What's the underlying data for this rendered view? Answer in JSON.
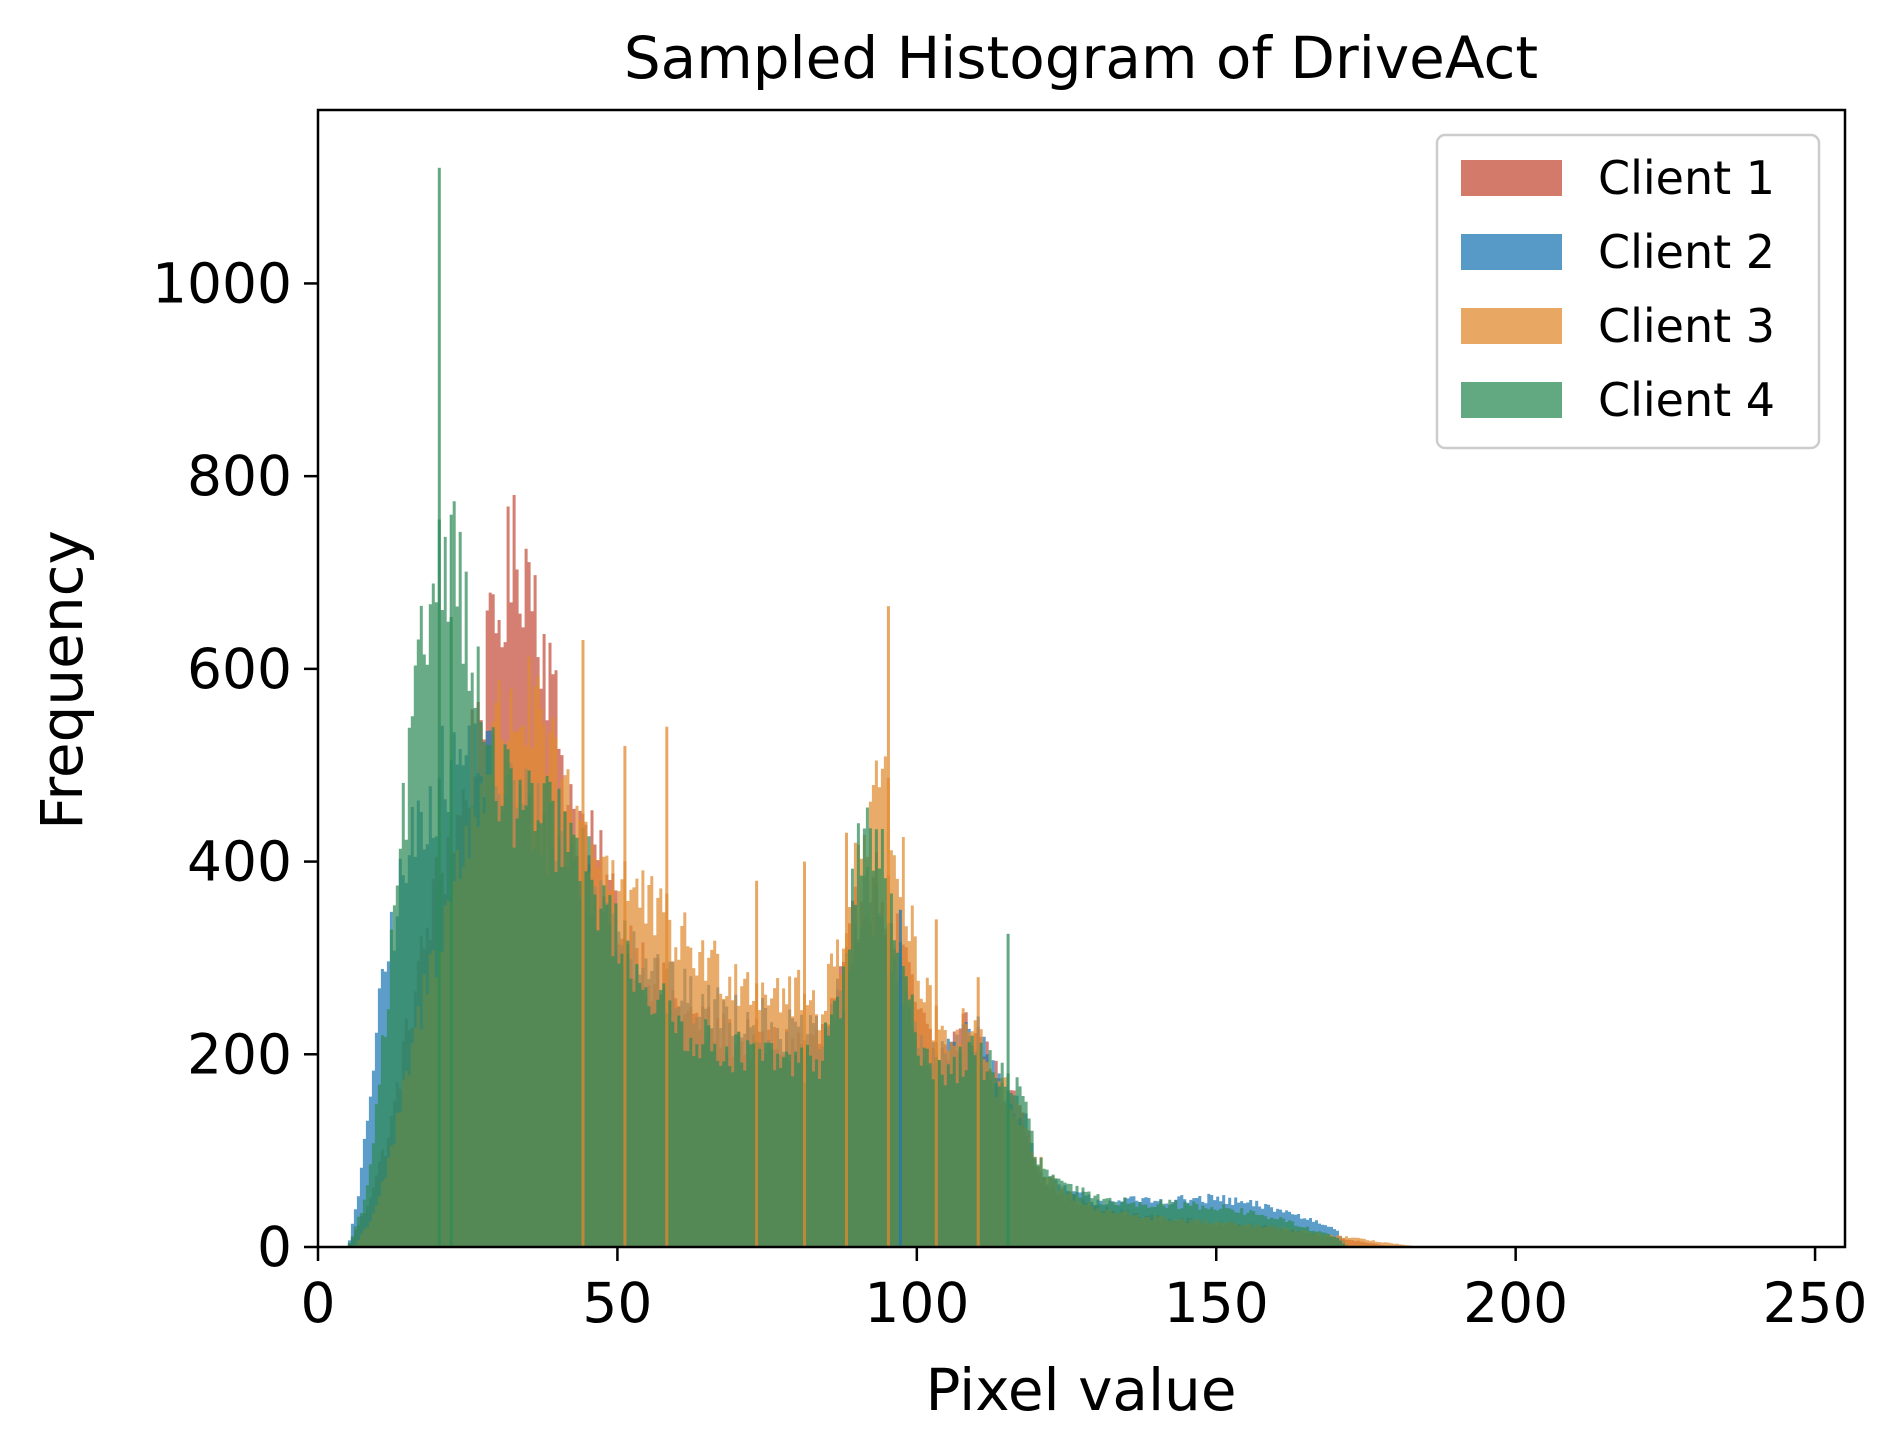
{
  "chart_data": {
    "type": "bar",
    "title": "Sampled Histogram of DriveAct",
    "xlabel": "Pixel value",
    "ylabel": "Frequency",
    "xlim": [
      0,
      255
    ],
    "ylim": [
      0,
      1180
    ],
    "xticks": [
      0,
      50,
      100,
      150,
      200,
      250
    ],
    "yticks": [
      0,
      200,
      400,
      600,
      800,
      1000
    ],
    "grid": false,
    "legend_position": "top-right",
    "series": [
      {
        "name": "Client 1",
        "color": "#c44e3a",
        "keypoints": [
          [
            5,
            0
          ],
          [
            8,
            40
          ],
          [
            12,
            120
          ],
          [
            16,
            260
          ],
          [
            20,
            380
          ],
          [
            24,
            450
          ],
          [
            27,
            560
          ],
          [
            30,
            650
          ],
          [
            32,
            700
          ],
          [
            34,
            720
          ],
          [
            36,
            690
          ],
          [
            38,
            620
          ],
          [
            40,
            540
          ],
          [
            42,
            470
          ],
          [
            45,
            420
          ],
          [
            48,
            380
          ],
          [
            52,
            320
          ],
          [
            56,
            280
          ],
          [
            60,
            250
          ],
          [
            64,
            230
          ],
          [
            68,
            220
          ],
          [
            72,
            215
          ],
          [
            76,
            210
          ],
          [
            80,
            210
          ],
          [
            84,
            215
          ],
          [
            88,
            280
          ],
          [
            90,
            350
          ],
          [
            92,
            380
          ],
          [
            94,
            370
          ],
          [
            96,
            340
          ],
          [
            98,
            290
          ],
          [
            100,
            250
          ],
          [
            102,
            215
          ],
          [
            104,
            200
          ],
          [
            106,
            210
          ],
          [
            108,
            230
          ],
          [
            110,
            225
          ],
          [
            112,
            195
          ],
          [
            114,
            165
          ],
          [
            116,
            150
          ],
          [
            118,
            130
          ],
          [
            120,
            80
          ],
          [
            124,
            55
          ],
          [
            130,
            40
          ],
          [
            140,
            30
          ],
          [
            150,
            25
          ],
          [
            160,
            20
          ],
          [
            165,
            15
          ],
          [
            170,
            10
          ],
          [
            175,
            5
          ],
          [
            180,
            0
          ]
        ]
      },
      {
        "name": "Client 2",
        "color": "#1f77b4",
        "keypoints": [
          [
            5,
            0
          ],
          [
            7,
            60
          ],
          [
            9,
            180
          ],
          [
            11,
            280
          ],
          [
            13,
            350
          ],
          [
            15,
            400
          ],
          [
            17,
            440
          ],
          [
            19,
            470
          ],
          [
            21,
            490
          ],
          [
            23,
            500
          ],
          [
            25,
            510
          ],
          [
            28,
            500
          ],
          [
            31,
            480
          ],
          [
            34,
            460
          ],
          [
            37,
            440
          ],
          [
            40,
            420
          ],
          [
            44,
            390
          ],
          [
            48,
            350
          ],
          [
            52,
            320
          ],
          [
            56,
            290
          ],
          [
            60,
            265
          ],
          [
            64,
            250
          ],
          [
            68,
            245
          ],
          [
            72,
            240
          ],
          [
            76,
            230
          ],
          [
            80,
            220
          ],
          [
            84,
            215
          ],
          [
            88,
            270
          ],
          [
            90,
            330
          ],
          [
            92,
            360
          ],
          [
            94,
            340
          ],
          [
            96,
            300
          ],
          [
            98,
            250
          ],
          [
            100,
            215
          ],
          [
            102,
            190
          ],
          [
            104,
            195
          ],
          [
            106,
            215
          ],
          [
            108,
            230
          ],
          [
            110,
            220
          ],
          [
            112,
            190
          ],
          [
            114,
            165
          ],
          [
            116,
            155
          ],
          [
            118,
            140
          ],
          [
            120,
            80
          ],
          [
            124,
            60
          ],
          [
            130,
            48
          ],
          [
            140,
            48
          ],
          [
            150,
            50
          ],
          [
            160,
            40
          ],
          [
            165,
            30
          ],
          [
            170,
            20
          ],
          [
            172,
            0
          ]
        ]
      },
      {
        "name": "Client 3",
        "color": "#e08a2f",
        "keypoints": [
          [
            6,
            0
          ],
          [
            9,
            30
          ],
          [
            12,
            90
          ],
          [
            15,
            180
          ],
          [
            18,
            270
          ],
          [
            21,
            340
          ],
          [
            24,
            400
          ],
          [
            27,
            470
          ],
          [
            30,
            540
          ],
          [
            33,
            560
          ],
          [
            36,
            550
          ],
          [
            39,
            500
          ],
          [
            42,
            450
          ],
          [
            45,
            420
          ],
          [
            48,
            400
          ],
          [
            51,
            380
          ],
          [
            54,
            360
          ],
          [
            57,
            340
          ],
          [
            60,
            320
          ],
          [
            64,
            300
          ],
          [
            68,
            285
          ],
          [
            72,
            275
          ],
          [
            76,
            268
          ],
          [
            80,
            260
          ],
          [
            84,
            250
          ],
          [
            88,
            330
          ],
          [
            90,
            400
          ],
          [
            92,
            430
          ],
          [
            94,
            470
          ],
          [
            96,
            450
          ],
          [
            98,
            380
          ],
          [
            100,
            300
          ],
          [
            102,
            250
          ],
          [
            104,
            220
          ],
          [
            106,
            225
          ],
          [
            108,
            235
          ],
          [
            110,
            225
          ],
          [
            112,
            190
          ],
          [
            114,
            165
          ],
          [
            116,
            150
          ],
          [
            118,
            130
          ],
          [
            120,
            90
          ],
          [
            124,
            60
          ],
          [
            130,
            38
          ],
          [
            140,
            30
          ],
          [
            150,
            25
          ],
          [
            160,
            20
          ],
          [
            166,
            15
          ],
          [
            172,
            10
          ],
          [
            178,
            5
          ],
          [
            184,
            0
          ]
        ]
      },
      {
        "name": "Client 4",
        "color": "#2e8b57",
        "keypoints": [
          [
            5,
            0
          ],
          [
            8,
            50
          ],
          [
            10,
            150
          ],
          [
            12,
            280
          ],
          [
            14,
            420
          ],
          [
            16,
            540
          ],
          [
            18,
            640
          ],
          [
            20,
            720
          ],
          [
            22,
            730
          ],
          [
            24,
            690
          ],
          [
            26,
            600
          ],
          [
            28,
            520
          ],
          [
            30,
            480
          ],
          [
            33,
            460
          ],
          [
            36,
            450
          ],
          [
            39,
            440
          ],
          [
            42,
            420
          ],
          [
            45,
            390
          ],
          [
            48,
            350
          ],
          [
            52,
            300
          ],
          [
            56,
            260
          ],
          [
            60,
            230
          ],
          [
            64,
            215
          ],
          [
            68,
            205
          ],
          [
            72,
            200
          ],
          [
            76,
            195
          ],
          [
            80,
            190
          ],
          [
            84,
            195
          ],
          [
            88,
            280
          ],
          [
            90,
            400
          ],
          [
            92,
            440
          ],
          [
            94,
            400
          ],
          [
            96,
            330
          ],
          [
            98,
            270
          ],
          [
            100,
            220
          ],
          [
            102,
            195
          ],
          [
            104,
            185
          ],
          [
            106,
            185
          ],
          [
            108,
            195
          ],
          [
            110,
            200
          ],
          [
            112,
            190
          ],
          [
            114,
            180
          ],
          [
            116,
            170
          ],
          [
            118,
            150
          ],
          [
            120,
            90
          ],
          [
            124,
            65
          ],
          [
            130,
            50
          ],
          [
            140,
            45
          ],
          [
            150,
            42
          ],
          [
            160,
            30
          ],
          [
            165,
            20
          ],
          [
            170,
            10
          ],
          [
            172,
            0
          ]
        ]
      }
    ],
    "spikes": [
      {
        "series": 3,
        "x": 20,
        "y": 1120
      },
      {
        "series": 3,
        "x": 22,
        "y": 760
      },
      {
        "series": 2,
        "x": 44,
        "y": 630
      },
      {
        "series": 2,
        "x": 51,
        "y": 520
      },
      {
        "series": 2,
        "x": 58,
        "y": 540
      },
      {
        "series": 2,
        "x": 73,
        "y": 380
      },
      {
        "series": 2,
        "x": 81,
        "y": 400
      },
      {
        "series": 2,
        "x": 88,
        "y": 430
      },
      {
        "series": 2,
        "x": 95,
        "y": 665
      },
      {
        "series": 1,
        "x": 97,
        "y": 350
      },
      {
        "series": 2,
        "x": 103,
        "y": 340
      },
      {
        "series": 2,
        "x": 110,
        "y": 280
      },
      {
        "series": 3,
        "x": 115,
        "y": 325
      }
    ]
  }
}
